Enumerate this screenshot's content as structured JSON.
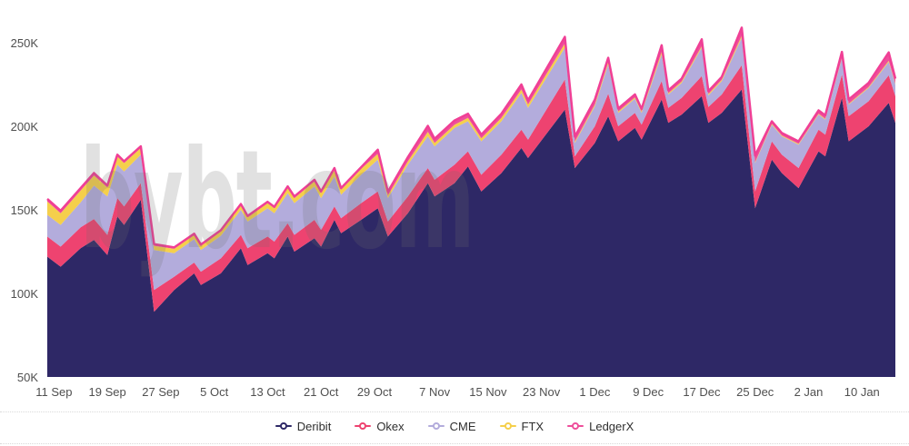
{
  "watermark": "bybt.com",
  "y_axis": {
    "unit": "K",
    "ticks": [
      {
        "value": 250,
        "label": "250K"
      },
      {
        "value": 200,
        "label": "200K"
      },
      {
        "value": 150,
        "label": "150K"
      },
      {
        "value": 100,
        "label": "100K"
      },
      {
        "value": 50,
        "label": "50K"
      }
    ]
  },
  "x_axis": {
    "ticks": [
      {
        "day": 1,
        "label": "11 Sep"
      },
      {
        "day": 9,
        "label": "19 Sep"
      },
      {
        "day": 17,
        "label": "27 Sep"
      },
      {
        "day": 25,
        "label": "5 Oct"
      },
      {
        "day": 33,
        "label": "13 Oct"
      },
      {
        "day": 41,
        "label": "21 Oct"
      },
      {
        "day": 49,
        "label": "29 Oct"
      },
      {
        "day": 58,
        "label": "7 Nov"
      },
      {
        "day": 66,
        "label": "15 Nov"
      },
      {
        "day": 74,
        "label": "23 Nov"
      },
      {
        "day": 82,
        "label": "1 Dec"
      },
      {
        "day": 90,
        "label": "9 Dec"
      },
      {
        "day": 98,
        "label": "17 Dec"
      },
      {
        "day": 106,
        "label": "25 Dec"
      },
      {
        "day": 114,
        "label": "2 Jan"
      },
      {
        "day": 122,
        "label": "10 Jan"
      }
    ]
  },
  "chart_data": {
    "type": "area",
    "stacked": true,
    "grid": false,
    "legend_position": "bottom-center",
    "value_unit": "K contracts",
    "ylim": [
      50,
      250
    ],
    "x_range_labels": [
      "11 Sep",
      "10 Jan"
    ],
    "days": [
      0,
      2,
      5,
      7,
      9,
      10.5,
      11.5,
      14,
      16,
      19,
      22,
      23,
      26,
      29,
      30,
      33,
      34,
      36,
      37,
      40,
      41,
      43,
      44,
      47,
      49.5,
      51,
      54,
      57,
      58,
      61,
      63,
      65,
      68,
      71,
      72,
      77.5,
      79,
      82,
      84,
      85.5,
      88,
      89,
      92,
      93,
      95,
      98,
      99,
      101,
      104,
      106,
      108.5,
      110,
      112.5,
      115.5,
      116.5,
      119,
      120,
      123,
      126,
      127
    ],
    "series": [
      {
        "name": "Deribit",
        "color": "#2e2866",
        "values": [
          122,
          116,
          127,
          132,
          123,
          146,
          141,
          156,
          89,
          102,
          112,
          105,
          112,
          127,
          117,
          124,
          121,
          134,
          125,
          133,
          128,
          144,
          136,
          144,
          151,
          134,
          148,
          166,
          158,
          166,
          176,
          161,
          172,
          187,
          181,
          210,
          175,
          190,
          206,
          191,
          199,
          192,
          216,
          202,
          207,
          218,
          202,
          208,
          222,
          151,
          180,
          172,
          163,
          185,
          182,
          217,
          191,
          200,
          214,
          202
        ]
      },
      {
        "name": "Okex",
        "color": "#ee4370",
        "values": [
          12,
          12,
          12.5,
          12.5,
          12,
          11,
          11,
          10,
          13,
          8,
          6.5,
          8,
          9,
          8,
          10,
          10,
          10,
          8,
          10,
          11,
          10,
          8,
          9,
          10,
          10,
          9,
          10,
          9,
          10,
          11,
          9,
          10,
          11,
          11,
          11,
          18,
          7,
          10,
          13.5,
          9,
          9,
          9,
          11,
          9,
          10,
          12,
          9.5,
          11,
          14.5,
          10,
          11,
          11,
          12,
          13,
          13,
          14,
          15,
          15,
          16.5,
          16
        ]
      },
      {
        "name": "CME",
        "color": "#b3acdc",
        "values": [
          13,
          13,
          15,
          20,
          23,
          20,
          21,
          17,
          24,
          14,
          14,
          13,
          13.5,
          15,
          16,
          17,
          17,
          18,
          19,
          20,
          19,
          18,
          14,
          17,
          19,
          14,
          19,
          19,
          20,
          22,
          18,
          20,
          20,
          22,
          19,
          19,
          8,
          12,
          17.5,
          8,
          8.5,
          7,
          16,
          8,
          9,
          17,
          7,
          8,
          16.5,
          17,
          10,
          11,
          14,
          9,
          9,
          9.5,
          7,
          8,
          8,
          7
        ]
      },
      {
        "name": "FTX",
        "color": "#f5cf4b",
        "values": [
          8,
          7,
          7,
          6,
          5.5,
          5,
          5,
          4,
          2.5,
          2.7,
          2.5,
          2.5,
          2.5,
          2.7,
          2.5,
          3,
          3,
          3,
          3,
          3,
          3,
          4,
          3,
          3.5,
          3.5,
          1.6,
          2,
          2.7,
          2,
          2,
          2,
          1.8,
          2,
          2,
          2,
          2.5,
          0.8,
          1,
          1.5,
          0.8,
          0.8,
          0.8,
          1.5,
          0.8,
          0.8,
          1,
          0.8,
          0.8,
          1.2,
          0.5,
          0.5,
          0.5,
          0.5,
          0.5,
          0.5,
          0.5,
          0.5,
          0.5,
          0.7,
          0.5
        ]
      },
      {
        "name": "LedgerX",
        "color": "#ee4f9b",
        "values": [
          1.5,
          1.5,
          1.5,
          1.5,
          1,
          1,
          1,
          1,
          1,
          0.8,
          0.7,
          0.7,
          0.8,
          0.8,
          0.8,
          0.8,
          0.8,
          1,
          1,
          1,
          1,
          1,
          1,
          1,
          2.5,
          2.2,
          2.5,
          3.5,
          2.5,
          2.5,
          2.5,
          2.2,
          2.5,
          3,
          2.5,
          4,
          3,
          3,
          2.5,
          1.8,
          1.8,
          1.5,
          4,
          1.7,
          1.7,
          4,
          1.7,
          1.7,
          4.8,
          4,
          1.5,
          1.5,
          1.5,
          2,
          2,
          3.5,
          2.5,
          2.5,
          5,
          3
        ]
      }
    ],
    "top_edge_stroke_color": "#f03f95"
  }
}
